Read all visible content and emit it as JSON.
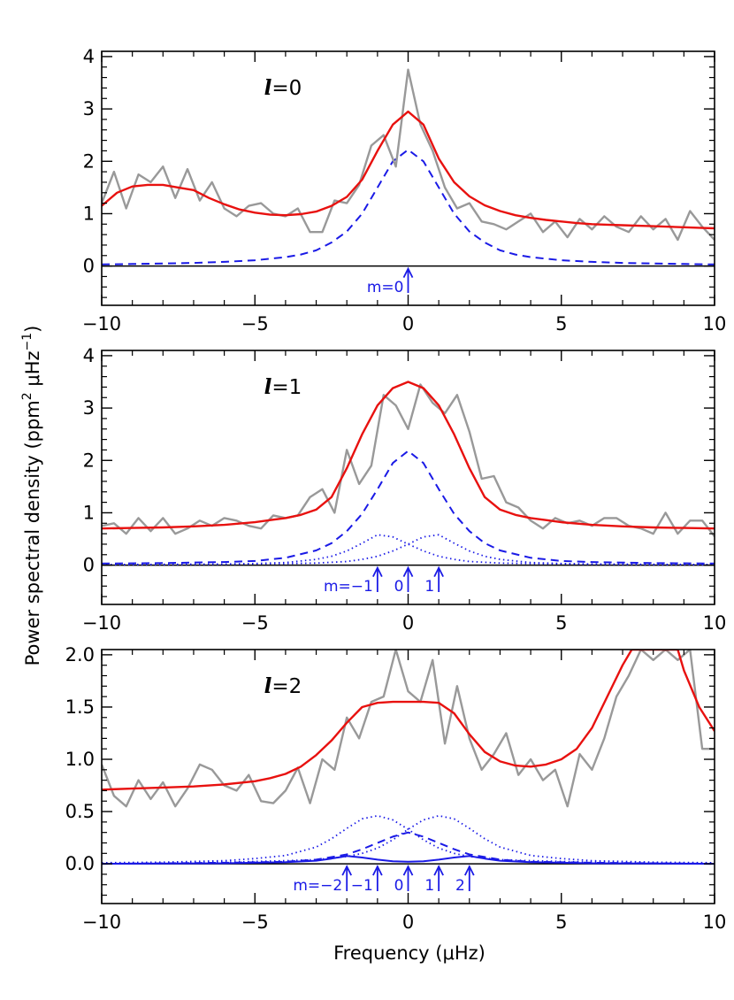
{
  "figure": {
    "ylabel_main": "Power spectral density (ppm",
    "ylabel_sup1": "2",
    "ylabel_mid": " μHz",
    "ylabel_sup2": "−1",
    "ylabel_close": ")",
    "xlabel": "Frequency (μHz)"
  },
  "colors": {
    "observed": "#999999",
    "fit": "#e8110f",
    "component": "#1a1ae6",
    "axis": "#000000"
  },
  "chart_data": [
    {
      "type": "line",
      "panel_label": "l=0",
      "panel_label_l": "l",
      "panel_label_rest": "=0",
      "xlim": [
        -10,
        10
      ],
      "ylim": [
        -0.75,
        4.1
      ],
      "xticks": [
        -10,
        -5,
        0,
        5,
        10
      ],
      "xtick_labels": [
        "−10",
        "−5",
        "0",
        "5",
        "10"
      ],
      "yticks": [
        0,
        1,
        2,
        3,
        4
      ],
      "ytick_labels": [
        "0",
        "1",
        "2",
        "3",
        "4"
      ],
      "series": [
        {
          "style": "observed",
          "x": [
            -10,
            -9.6,
            -9.2,
            -8.8,
            -8.4,
            -8.0,
            -7.6,
            -7.2,
            -6.8,
            -6.4,
            -6.0,
            -5.6,
            -5.2,
            -4.8,
            -4.4,
            -4.0,
            -3.6,
            -3.2,
            -2.8,
            -2.4,
            -2.0,
            -1.6,
            -1.2,
            -0.8,
            -0.4,
            0.0,
            0.4,
            0.8,
            1.2,
            1.6,
            2.0,
            2.4,
            2.8,
            3.2,
            3.6,
            4.0,
            4.4,
            4.8,
            5.2,
            5.6,
            6.0,
            6.4,
            6.8,
            7.2,
            7.6,
            8.0,
            8.4,
            8.8,
            9.2,
            9.6,
            10.0
          ],
          "y": [
            1.2,
            1.8,
            1.1,
            1.75,
            1.6,
            1.9,
            1.3,
            1.85,
            1.25,
            1.6,
            1.1,
            0.95,
            1.15,
            1.2,
            1.0,
            0.95,
            1.1,
            0.65,
            0.65,
            1.25,
            1.2,
            1.55,
            2.3,
            2.5,
            1.9,
            3.75,
            2.7,
            2.2,
            1.5,
            1.1,
            1.2,
            0.85,
            0.8,
            0.7,
            0.85,
            1.0,
            0.65,
            0.85,
            0.55,
            0.9,
            0.7,
            0.95,
            0.75,
            0.65,
            0.95,
            0.7,
            0.9,
            0.5,
            1.05,
            0.75,
            0.5
          ]
        },
        {
          "style": "fit",
          "x": [
            -10,
            -9.5,
            -9.0,
            -8.5,
            -8.0,
            -7.5,
            -7.0,
            -6.5,
            -6.0,
            -5.5,
            -5.0,
            -4.5,
            -4.0,
            -3.5,
            -3.0,
            -2.5,
            -2.0,
            -1.5,
            -1.0,
            -0.5,
            0.0,
            0.5,
            1.0,
            1.5,
            2.0,
            2.5,
            3.0,
            3.5,
            4.0,
            4.5,
            5.0,
            5.5,
            6.0,
            6.5,
            7.0,
            7.5,
            8.0,
            8.5,
            9.0,
            9.5,
            10.0
          ],
          "y": [
            1.15,
            1.4,
            1.52,
            1.55,
            1.55,
            1.5,
            1.45,
            1.3,
            1.18,
            1.08,
            1.02,
            0.98,
            0.97,
            0.99,
            1.04,
            1.15,
            1.32,
            1.65,
            2.2,
            2.7,
            2.95,
            2.7,
            2.05,
            1.6,
            1.33,
            1.16,
            1.05,
            0.97,
            0.92,
            0.88,
            0.85,
            0.82,
            0.8,
            0.79,
            0.78,
            0.77,
            0.76,
            0.75,
            0.74,
            0.73,
            0.72
          ]
        },
        {
          "style": "dashed",
          "x": [
            -10,
            -9.0,
            -8.0,
            -7.0,
            -6.0,
            -5.0,
            -4.0,
            -3.5,
            -3.0,
            -2.5,
            -2.0,
            -1.5,
            -1.0,
            -0.5,
            0.0,
            0.5,
            1.0,
            1.5,
            2.0,
            2.5,
            3.0,
            3.5,
            4.0,
            5.0,
            6.0,
            7.0,
            8.0,
            9.0,
            10.0
          ],
          "y": [
            0.03,
            0.04,
            0.05,
            0.06,
            0.08,
            0.11,
            0.17,
            0.22,
            0.3,
            0.45,
            0.66,
            1.0,
            1.5,
            2.0,
            2.22,
            2.0,
            1.5,
            1.0,
            0.66,
            0.45,
            0.3,
            0.22,
            0.17,
            0.11,
            0.08,
            0.06,
            0.05,
            0.04,
            0.03
          ]
        }
      ],
      "markers": [
        {
          "x": 0,
          "label": "m=0",
          "label_side": "left"
        }
      ]
    },
    {
      "type": "line",
      "panel_label": "l=1",
      "panel_label_l": "l",
      "panel_label_rest": "=1",
      "xlim": [
        -10,
        10
      ],
      "ylim": [
        -0.75,
        4.1
      ],
      "xticks": [
        -10,
        -5,
        0,
        5,
        10
      ],
      "xtick_labels": [
        "−10",
        "−5",
        "0",
        "5",
        "10"
      ],
      "yticks": [
        0,
        1,
        2,
        3,
        4
      ],
      "ytick_labels": [
        "0",
        "1",
        "2",
        "3",
        "4"
      ],
      "series": [
        {
          "style": "observed",
          "x": [
            -10,
            -9.6,
            -9.2,
            -8.8,
            -8.4,
            -8.0,
            -7.6,
            -7.2,
            -6.8,
            -6.4,
            -6.0,
            -5.6,
            -5.2,
            -4.8,
            -4.4,
            -4.0,
            -3.6,
            -3.2,
            -2.8,
            -2.4,
            -2.0,
            -1.6,
            -1.2,
            -0.8,
            -0.4,
            0.0,
            0.4,
            0.8,
            1.2,
            1.6,
            2.0,
            2.4,
            2.8,
            3.2,
            3.6,
            4.0,
            4.4,
            4.8,
            5.2,
            5.6,
            6.0,
            6.4,
            6.8,
            7.2,
            7.6,
            8.0,
            8.4,
            8.8,
            9.2,
            9.6,
            10.0
          ],
          "y": [
            0.75,
            0.8,
            0.6,
            0.9,
            0.65,
            0.9,
            0.6,
            0.7,
            0.85,
            0.75,
            0.9,
            0.85,
            0.75,
            0.7,
            0.95,
            0.9,
            0.95,
            1.3,
            1.45,
            1.0,
            2.2,
            1.55,
            1.9,
            3.25,
            3.05,
            2.6,
            3.45,
            3.1,
            2.9,
            3.25,
            2.55,
            1.65,
            1.7,
            1.2,
            1.1,
            0.85,
            0.7,
            0.9,
            0.8,
            0.85,
            0.75,
            0.9,
            0.9,
            0.75,
            0.7,
            0.6,
            1.0,
            0.6,
            0.85,
            0.85,
            0.55
          ]
        },
        {
          "style": "fit",
          "x": [
            -10,
            -9.0,
            -8.0,
            -7.0,
            -6.0,
            -5.0,
            -4.5,
            -4.0,
            -3.5,
            -3.0,
            -2.5,
            -2.0,
            -1.5,
            -1.0,
            -0.5,
            0.0,
            0.5,
            1.0,
            1.5,
            2.0,
            2.5,
            3.0,
            3.5,
            4.0,
            4.5,
            5.0,
            6.0,
            7.0,
            8.0,
            9.0,
            10.0
          ],
          "y": [
            0.7,
            0.71,
            0.72,
            0.74,
            0.77,
            0.82,
            0.86,
            0.9,
            0.96,
            1.06,
            1.3,
            1.85,
            2.5,
            3.05,
            3.38,
            3.5,
            3.38,
            3.05,
            2.5,
            1.85,
            1.3,
            1.06,
            0.96,
            0.9,
            0.86,
            0.82,
            0.77,
            0.74,
            0.72,
            0.71,
            0.7
          ]
        },
        {
          "style": "dashed",
          "x": [
            -10,
            -8.0,
            -6.0,
            -5.0,
            -4.0,
            -3.0,
            -2.5,
            -2.0,
            -1.5,
            -1.0,
            -0.5,
            0.0,
            0.5,
            1.0,
            1.5,
            2.0,
            2.5,
            3.0,
            4.0,
            5.0,
            6.0,
            8.0,
            10.0
          ],
          "y": [
            0.03,
            0.04,
            0.06,
            0.08,
            0.14,
            0.28,
            0.42,
            0.65,
            0.98,
            1.45,
            1.95,
            2.18,
            1.95,
            1.45,
            0.98,
            0.65,
            0.42,
            0.28,
            0.14,
            0.08,
            0.06,
            0.04,
            0.03
          ]
        },
        {
          "style": "dotted",
          "x": [
            -10,
            -8.0,
            -6.0,
            -5.0,
            -4.0,
            -3.0,
            -2.5,
            -2.0,
            -1.5,
            -1.0,
            -0.5,
            0.0,
            0.5,
            1.0,
            1.5,
            2.0,
            3.0,
            4.0,
            6.0,
            8.0,
            10.0
          ],
          "y": [
            0.01,
            0.015,
            0.02,
            0.03,
            0.05,
            0.11,
            0.17,
            0.27,
            0.42,
            0.58,
            0.54,
            0.4,
            0.27,
            0.17,
            0.11,
            0.07,
            0.04,
            0.03,
            0.02,
            0.01,
            0.01
          ]
        },
        {
          "style": "dotted",
          "x": [
            -10,
            -8.0,
            -6.0,
            -4.0,
            -3.0,
            -2.0,
            -1.5,
            -1.0,
            -0.5,
            0.0,
            0.5,
            1.0,
            1.5,
            2.0,
            2.5,
            3.0,
            4.0,
            5.0,
            6.0,
            8.0,
            10.0
          ],
          "y": [
            0.01,
            0.01,
            0.02,
            0.03,
            0.04,
            0.07,
            0.11,
            0.17,
            0.27,
            0.4,
            0.54,
            0.58,
            0.42,
            0.27,
            0.17,
            0.11,
            0.05,
            0.03,
            0.02,
            0.015,
            0.01
          ]
        }
      ],
      "markers": [
        {
          "x": -1,
          "label": "m=−1",
          "label_side": "left"
        },
        {
          "x": 0,
          "label": "0",
          "label_side": "left"
        },
        {
          "x": 1,
          "label": "1",
          "label_side": "left"
        }
      ]
    },
    {
      "type": "line",
      "panel_label": "l=2",
      "panel_label_l": "l",
      "panel_label_rest": "=2",
      "xlim": [
        -10,
        10
      ],
      "ylim": [
        -0.38,
        2.05
      ],
      "xticks": [
        -10,
        -5,
        0,
        5,
        10
      ],
      "xtick_labels": [
        "−10",
        "−5",
        "0",
        "5",
        "10"
      ],
      "yticks": [
        0,
        0.5,
        1.0,
        1.5,
        2.0
      ],
      "ytick_labels": [
        "0.0",
        "0.5",
        "1.0",
        "1.5",
        "2.0"
      ],
      "series": [
        {
          "style": "observed",
          "x": [
            -10,
            -9.6,
            -9.2,
            -8.8,
            -8.4,
            -8.0,
            -7.6,
            -7.2,
            -6.8,
            -6.4,
            -6.0,
            -5.6,
            -5.2,
            -4.8,
            -4.4,
            -4.0,
            -3.6,
            -3.2,
            -2.8,
            -2.4,
            -2.0,
            -1.6,
            -1.2,
            -0.8,
            -0.4,
            0.0,
            0.4,
            0.8,
            1.2,
            1.6,
            2.0,
            2.4,
            2.8,
            3.2,
            3.6,
            4.0,
            4.4,
            4.8,
            5.2,
            5.6,
            6.0,
            6.4,
            6.8,
            7.2,
            7.6,
            8.0,
            8.4,
            8.8,
            9.2,
            9.6,
            10.0
          ],
          "y": [
            0.95,
            0.65,
            0.55,
            0.8,
            0.62,
            0.78,
            0.55,
            0.72,
            0.95,
            0.9,
            0.75,
            0.7,
            0.85,
            0.6,
            0.58,
            0.7,
            0.92,
            0.58,
            1.0,
            0.9,
            1.4,
            1.2,
            1.55,
            1.6,
            2.05,
            1.65,
            1.55,
            1.95,
            1.15,
            1.7,
            1.2,
            0.9,
            1.05,
            1.25,
            0.85,
            1.0,
            0.8,
            0.9,
            0.55,
            1.05,
            0.9,
            1.2,
            1.6,
            1.8,
            2.05,
            1.95,
            2.05,
            1.95,
            2.05,
            1.1,
            1.1
          ]
        },
        {
          "style": "fit",
          "x": [
            -10,
            -9.0,
            -8.0,
            -7.0,
            -6.0,
            -5.0,
            -4.5,
            -4.0,
            -3.5,
            -3.0,
            -2.5,
            -2.0,
            -1.5,
            -1.0,
            -0.5,
            0.0,
            0.5,
            1.0,
            1.5,
            2.0,
            2.5,
            3.0,
            3.5,
            4.0,
            4.5,
            5.0,
            5.5,
            6.0,
            6.5,
            7.0,
            7.3,
            8.8,
            9.0,
            9.5,
            10.0
          ],
          "y": [
            0.71,
            0.72,
            0.73,
            0.74,
            0.76,
            0.79,
            0.82,
            0.86,
            0.93,
            1.04,
            1.18,
            1.35,
            1.5,
            1.54,
            1.55,
            1.55,
            1.55,
            1.54,
            1.44,
            1.24,
            1.07,
            0.98,
            0.94,
            0.93,
            0.95,
            1.0,
            1.1,
            1.3,
            1.6,
            1.9,
            2.05,
            2.05,
            1.85,
            1.5,
            1.27
          ]
        },
        {
          "style": "dashed",
          "x": [
            -10,
            -8.0,
            -6.0,
            -4.0,
            -3.0,
            -2.0,
            -1.5,
            -1.0,
            -0.5,
            0.0,
            0.5,
            1.0,
            1.5,
            2.0,
            3.0,
            4.0,
            6.0,
            8.0,
            10.0
          ],
          "y": [
            0.0,
            0.005,
            0.01,
            0.02,
            0.04,
            0.09,
            0.14,
            0.2,
            0.26,
            0.3,
            0.26,
            0.2,
            0.14,
            0.09,
            0.04,
            0.02,
            0.01,
            0.005,
            0.0
          ]
        },
        {
          "style": "dotted",
          "x": [
            -10,
            -8.0,
            -6.0,
            -5.0,
            -4.0,
            -3.0,
            -2.5,
            -2.0,
            -1.5,
            -1.0,
            -0.5,
            0.0,
            0.5,
            1.0,
            1.5,
            2.0,
            3.0,
            4.0,
            6.0,
            8.0,
            10.0
          ],
          "y": [
            0.01,
            0.015,
            0.03,
            0.05,
            0.08,
            0.16,
            0.24,
            0.34,
            0.43,
            0.46,
            0.42,
            0.33,
            0.23,
            0.15,
            0.1,
            0.07,
            0.04,
            0.03,
            0.015,
            0.01,
            0.005
          ]
        },
        {
          "style": "dotted",
          "x": [
            -10,
            -8.0,
            -6.0,
            -4.0,
            -3.0,
            -2.0,
            -1.5,
            -1.0,
            -0.5,
            0.0,
            0.5,
            1.0,
            1.5,
            2.0,
            2.5,
            3.0,
            4.0,
            5.0,
            6.0,
            8.0,
            10.0
          ],
          "y": [
            0.005,
            0.01,
            0.015,
            0.03,
            0.04,
            0.07,
            0.1,
            0.15,
            0.23,
            0.33,
            0.42,
            0.46,
            0.43,
            0.34,
            0.24,
            0.16,
            0.08,
            0.05,
            0.03,
            0.015,
            0.01
          ]
        },
        {
          "style": "solid-component",
          "x": [
            -10,
            -6.0,
            -4.0,
            -3.0,
            -2.5,
            -2.0,
            -1.5,
            -1.0,
            -0.5,
            0.0,
            0.5,
            1.0,
            1.5,
            2.0,
            2.5,
            3.0,
            4.0,
            6.0,
            10.0
          ],
          "y": [
            0.0,
            0.005,
            0.015,
            0.03,
            0.05,
            0.075,
            0.06,
            0.04,
            0.025,
            0.02,
            0.025,
            0.04,
            0.06,
            0.075,
            0.05,
            0.03,
            0.015,
            0.005,
            0.0
          ]
        }
      ],
      "markers": [
        {
          "x": -2,
          "label": "m=−2",
          "label_side": "left"
        },
        {
          "x": -1,
          "label": "−1",
          "label_side": "left"
        },
        {
          "x": 0,
          "label": "0",
          "label_side": "left"
        },
        {
          "x": 1,
          "label": "1",
          "label_side": "left"
        },
        {
          "x": 2,
          "label": "2",
          "label_side": "left"
        }
      ]
    }
  ]
}
